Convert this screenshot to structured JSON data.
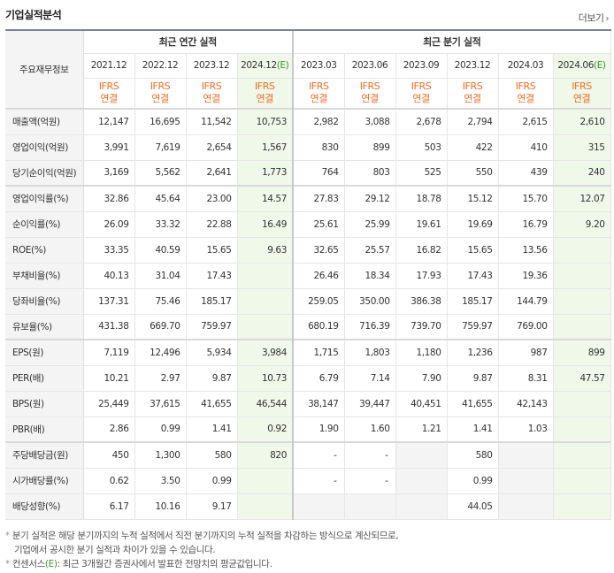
{
  "header": {
    "title": "기업실적분석",
    "more_label": "더보기",
    "more_arrow": "›"
  },
  "table": {
    "label_header": "주요재무정보",
    "groups": {
      "annual": "최근 연간 실적",
      "quarter": "최근 분기 실적"
    },
    "periods": [
      "2021.12",
      "2022.12",
      "2023.12",
      "2024.12",
      "2023.03",
      "2023.06",
      "2023.09",
      "2023.12",
      "2024.03",
      "2024.06"
    ],
    "estimate_suffix": "(E)",
    "ifrs_top": "IFRS",
    "ifrs_bottom": "연결",
    "rows": [
      {
        "label": "매출액(억원)",
        "values": [
          "12,147",
          "16,695",
          "11,542",
          "10,753",
          "2,982",
          "3,088",
          "2,678",
          "2,794",
          "2,615",
          "2,610"
        ]
      },
      {
        "label": "영업이익(억원)",
        "values": [
          "3,991",
          "7,619",
          "2,654",
          "1,567",
          "830",
          "899",
          "503",
          "422",
          "410",
          "315"
        ]
      },
      {
        "label": "당기순이익(억원)",
        "values": [
          "3,169",
          "5,562",
          "2,641",
          "1,773",
          "764",
          "803",
          "525",
          "550",
          "439",
          "240"
        ]
      },
      {
        "label": "영업이익률(%)",
        "values": [
          "32.86",
          "45.64",
          "23.00",
          "14.57",
          "27.83",
          "29.12",
          "18.78",
          "15.12",
          "15.70",
          "12.07"
        ]
      },
      {
        "label": "순이익률(%)",
        "values": [
          "26.09",
          "33.32",
          "22.88",
          "16.49",
          "25.61",
          "25.99",
          "19.61",
          "19.69",
          "16.79",
          "9.20"
        ]
      },
      {
        "label": "ROE(%)",
        "values": [
          "33.35",
          "40.59",
          "15.65",
          "9.63",
          "32.65",
          "25.57",
          "16.82",
          "15.65",
          "13.56",
          ""
        ]
      },
      {
        "label": "부채비율(%)",
        "values": [
          "40.13",
          "31.04",
          "17.43",
          "",
          "26.46",
          "18.34",
          "17.93",
          "17.43",
          "19.36",
          ""
        ]
      },
      {
        "label": "당좌비율(%)",
        "values": [
          "137.31",
          "75.46",
          "185.17",
          "",
          "259.05",
          "350.00",
          "386.38",
          "185.17",
          "144.79",
          ""
        ]
      },
      {
        "label": "유보율(%)",
        "values": [
          "431.38",
          "669.70",
          "759.97",
          "",
          "680.19",
          "716.39",
          "739.70",
          "759.97",
          "769.00",
          ""
        ]
      },
      {
        "label": "EPS(원)",
        "values": [
          "7,119",
          "12,496",
          "5,934",
          "3,984",
          "1,715",
          "1,803",
          "1,180",
          "1,236",
          "987",
          "899"
        ]
      },
      {
        "label": "PER(배)",
        "values": [
          "10.21",
          "2.97",
          "9.87",
          "10.73",
          "6.79",
          "7.14",
          "7.90",
          "9.87",
          "8.31",
          "47.57"
        ]
      },
      {
        "label": "BPS(원)",
        "values": [
          "25,449",
          "37,615",
          "41,655",
          "46,544",
          "38,147",
          "39,447",
          "40,451",
          "41,655",
          "42,143",
          ""
        ]
      },
      {
        "label": "PBR(배)",
        "values": [
          "2.86",
          "0.99",
          "1.41",
          "0.92",
          "1.90",
          "1.60",
          "1.21",
          "1.41",
          "1.03",
          ""
        ]
      },
      {
        "label": "주당배당금(원)",
        "values": [
          "450",
          "1,300",
          "580",
          "820",
          "-",
          "-",
          "",
          "580",
          "",
          ""
        ]
      },
      {
        "label": "시가배당률(%)",
        "values": [
          "0.62",
          "3.50",
          "0.99",
          "",
          "-",
          "-",
          "",
          "0.99",
          "",
          ""
        ]
      },
      {
        "label": "배당성향(%)",
        "values": [
          "6.17",
          "10.16",
          "9.17",
          "",
          "",
          "",
          "",
          "44.05",
          "",
          ""
        ]
      }
    ]
  },
  "notes": {
    "bullet": "*",
    "line1": "분기 실적은 해당 분기까지의 누적 실적에서 직전 분기까지의 누적 실적을 차감하는 방식으로 계산되므로,",
    "line2": "기업에서 공시한 분기 실적과 차이가 있을 수 있습니다.",
    "line3_prefix": "컨센서스",
    "line3_e": "(E)",
    "line3_rest": ": 최근 3개월간 증권사에서 발표한 전망치의 평균값입니다."
  },
  "colors": {
    "ifrs": "#ef6c22",
    "estimate_bg": "#eff8e9",
    "estimate_text": "#3a9a2e",
    "label_bg": "#f4f4f4"
  }
}
